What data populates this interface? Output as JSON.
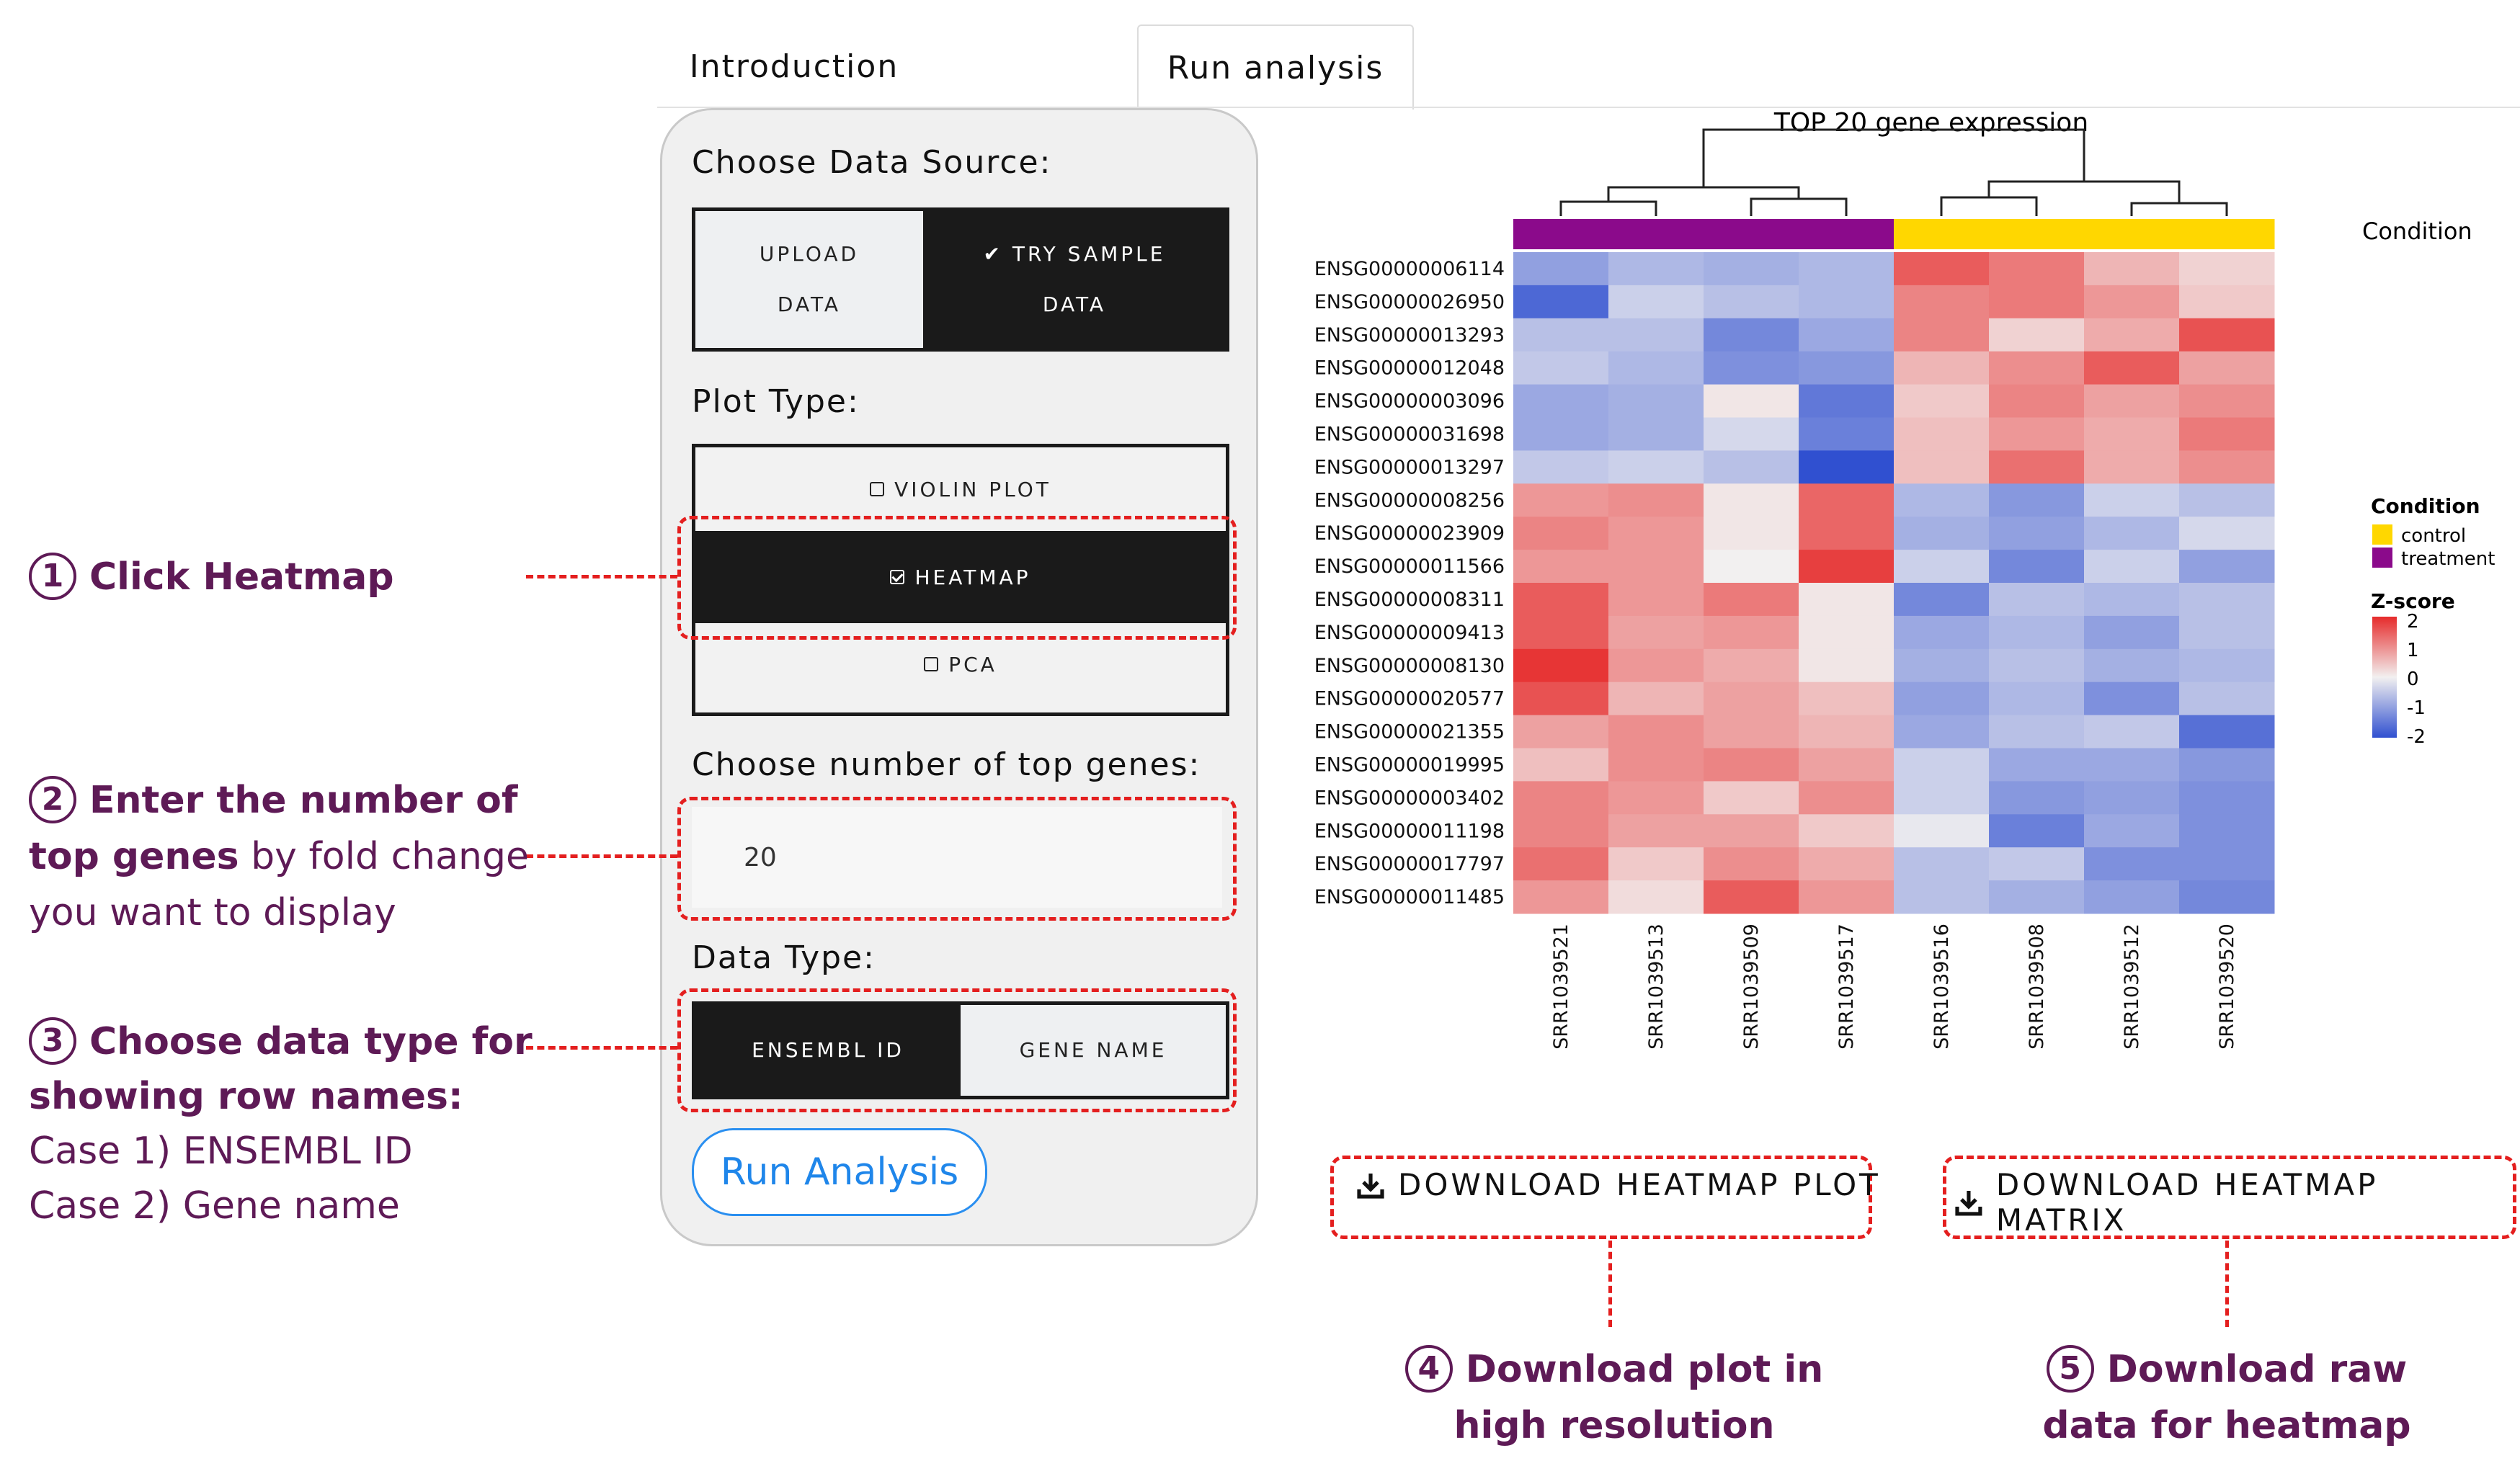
{
  "tabs": [
    {
      "label": "Introduction"
    },
    {
      "label": "Run analysis"
    }
  ],
  "panel": {
    "data_source": {
      "label": "Choose Data Source:",
      "upload_line1": "UPLOAD",
      "upload_line2": "DATA",
      "sample_line1": "TRY SAMPLE",
      "sample_line2": "DATA",
      "selected": "TRY SAMPLE DATA"
    },
    "plot_type": {
      "label": "Plot Type:",
      "options": [
        "VIOLIN PLOT",
        "HEATMAP",
        "PCA"
      ],
      "selected": "HEATMAP"
    },
    "top_genes": {
      "label": "Choose number of top genes:",
      "value": "20"
    },
    "data_type": {
      "label": "Data Type:",
      "options": [
        "ENSEMBL ID",
        "GENE NAME"
      ],
      "selected": "ENSEMBL ID"
    },
    "run_button": "Run Analysis"
  },
  "annotations": {
    "a1": {
      "num": "1",
      "bold": "Click Heatmap"
    },
    "a2": {
      "num": "2",
      "bold1": "Enter the number of",
      "bold2": "top genes",
      "rest2": " by fold change",
      "line3": "you want to display"
    },
    "a3": {
      "num": "3",
      "bold1": "Choose data type for",
      "bold2": "showing row names:",
      "line3": "Case 1) ENSEMBL ID",
      "line4": "Case 2) Gene name"
    },
    "a4": {
      "num": "4",
      "line1": "Download plot in",
      "line2": "high resolution"
    },
    "a5": {
      "num": "5",
      "line1": "Download raw",
      "line2": "data for heatmap"
    }
  },
  "downloads": {
    "plot": "DOWNLOAD HEATMAP PLOT",
    "matrix": "DOWNLOAD HEATMAP MATRIX"
  },
  "colors": {
    "control": "#ffd700",
    "treatment": "#8b0a8b",
    "annotation_text": "#5e1a56",
    "dashed_red": "#e41f1f",
    "run_button_blue": "#1f86ea"
  },
  "chart_data": {
    "type": "heatmap",
    "title": "TOP 20 gene expression",
    "annotation_label": "Condition",
    "legend": {
      "condition_title": "Condition",
      "condition_entries": [
        {
          "name": "control",
          "color": "#ffd700"
        },
        {
          "name": "treatment",
          "color": "#8b0a8b"
        }
      ],
      "zscore_title": "Z-score",
      "zscore_ticks": [
        "2",
        "1",
        "0",
        "-1",
        "-2"
      ],
      "placement": "right"
    },
    "samples": [
      "SRR1039521",
      "SRR1039513",
      "SRR1039509",
      "SRR1039517",
      "SRR1039516",
      "SRR1039508",
      "SRR1039512",
      "SRR1039520"
    ],
    "sample_conditions": [
      "treatment",
      "treatment",
      "treatment",
      "treatment",
      "control",
      "control",
      "control",
      "control"
    ],
    "genes": [
      "ENSG00000006114",
      "ENSG00000026950",
      "ENSG00000013293",
      "ENSG00000012048",
      "ENSG00000003096",
      "ENSG00000031698",
      "ENSG00000013297",
      "ENSG00000008256",
      "ENSG00000023909",
      "ENSG00000011566",
      "ENSG00000008311",
      "ENSG00000009413",
      "ENSG00000008130",
      "ENSG00000020577",
      "ENSG00000021355",
      "ENSG00000019995",
      "ENSG00000003402",
      "ENSG00000011198",
      "ENSG00000017797",
      "ENSG00000011485"
    ],
    "zlim": [
      -2,
      2
    ],
    "values": [
      [
        -1.0,
        -0.7,
        -0.8,
        -0.7,
        1.5,
        1.2,
        0.6,
        0.3
      ],
      [
        -1.7,
        -0.4,
        -0.6,
        -0.7,
        1.1,
        1.2,
        0.9,
        0.4
      ],
      [
        -0.6,
        -0.6,
        -1.3,
        -0.9,
        1.1,
        0.3,
        0.7,
        1.6
      ],
      [
        -0.5,
        -0.7,
        -1.2,
        -1.1,
        0.6,
        1.0,
        1.5,
        0.8
      ],
      [
        -0.9,
        -0.8,
        0.1,
        -1.5,
        0.4,
        1.1,
        0.8,
        1.0
      ],
      [
        -0.9,
        -0.8,
        -0.3,
        -1.4,
        0.5,
        0.9,
        0.7,
        1.2
      ],
      [
        -0.5,
        -0.4,
        -0.6,
        -2.0,
        0.5,
        1.3,
        0.7,
        1.0
      ],
      [
        0.9,
        1.0,
        0.1,
        1.4,
        -0.7,
        -1.1,
        -0.4,
        -0.6
      ],
      [
        1.1,
        0.9,
        0.1,
        1.4,
        -0.8,
        -1.0,
        -0.7,
        -0.3
      ],
      [
        0.9,
        0.9,
        0.0,
        1.8,
        -0.4,
        -1.3,
        -0.4,
        -1.0
      ],
      [
        1.5,
        0.9,
        1.2,
        0.1,
        -1.3,
        -0.6,
        -0.7,
        -0.6
      ],
      [
        1.5,
        0.8,
        0.9,
        0.1,
        -0.9,
        -0.7,
        -1.0,
        -0.6
      ],
      [
        1.9,
        0.9,
        0.7,
        0.1,
        -0.8,
        -0.6,
        -0.8,
        -0.7
      ],
      [
        1.6,
        0.6,
        0.8,
        0.5,
        -1.0,
        -0.7,
        -1.2,
        -0.6
      ],
      [
        0.8,
        1.0,
        0.8,
        0.6,
        -0.9,
        -0.6,
        -0.5,
        -1.6
      ],
      [
        0.5,
        1.0,
        1.1,
        0.8,
        -0.4,
        -0.9,
        -0.9,
        -1.1
      ],
      [
        1.1,
        0.9,
        0.4,
        1.0,
        -0.4,
        -1.1,
        -1.0,
        -1.2
      ],
      [
        1.1,
        0.8,
        0.8,
        0.4,
        -0.1,
        -1.4,
        -0.9,
        -1.2
      ],
      [
        1.3,
        0.4,
        1.0,
        0.7,
        -0.6,
        -0.5,
        -1.2,
        -1.2
      ],
      [
        0.9,
        0.2,
        1.5,
        0.9,
        -0.6,
        -0.8,
        -1.0,
        -1.3
      ]
    ]
  }
}
